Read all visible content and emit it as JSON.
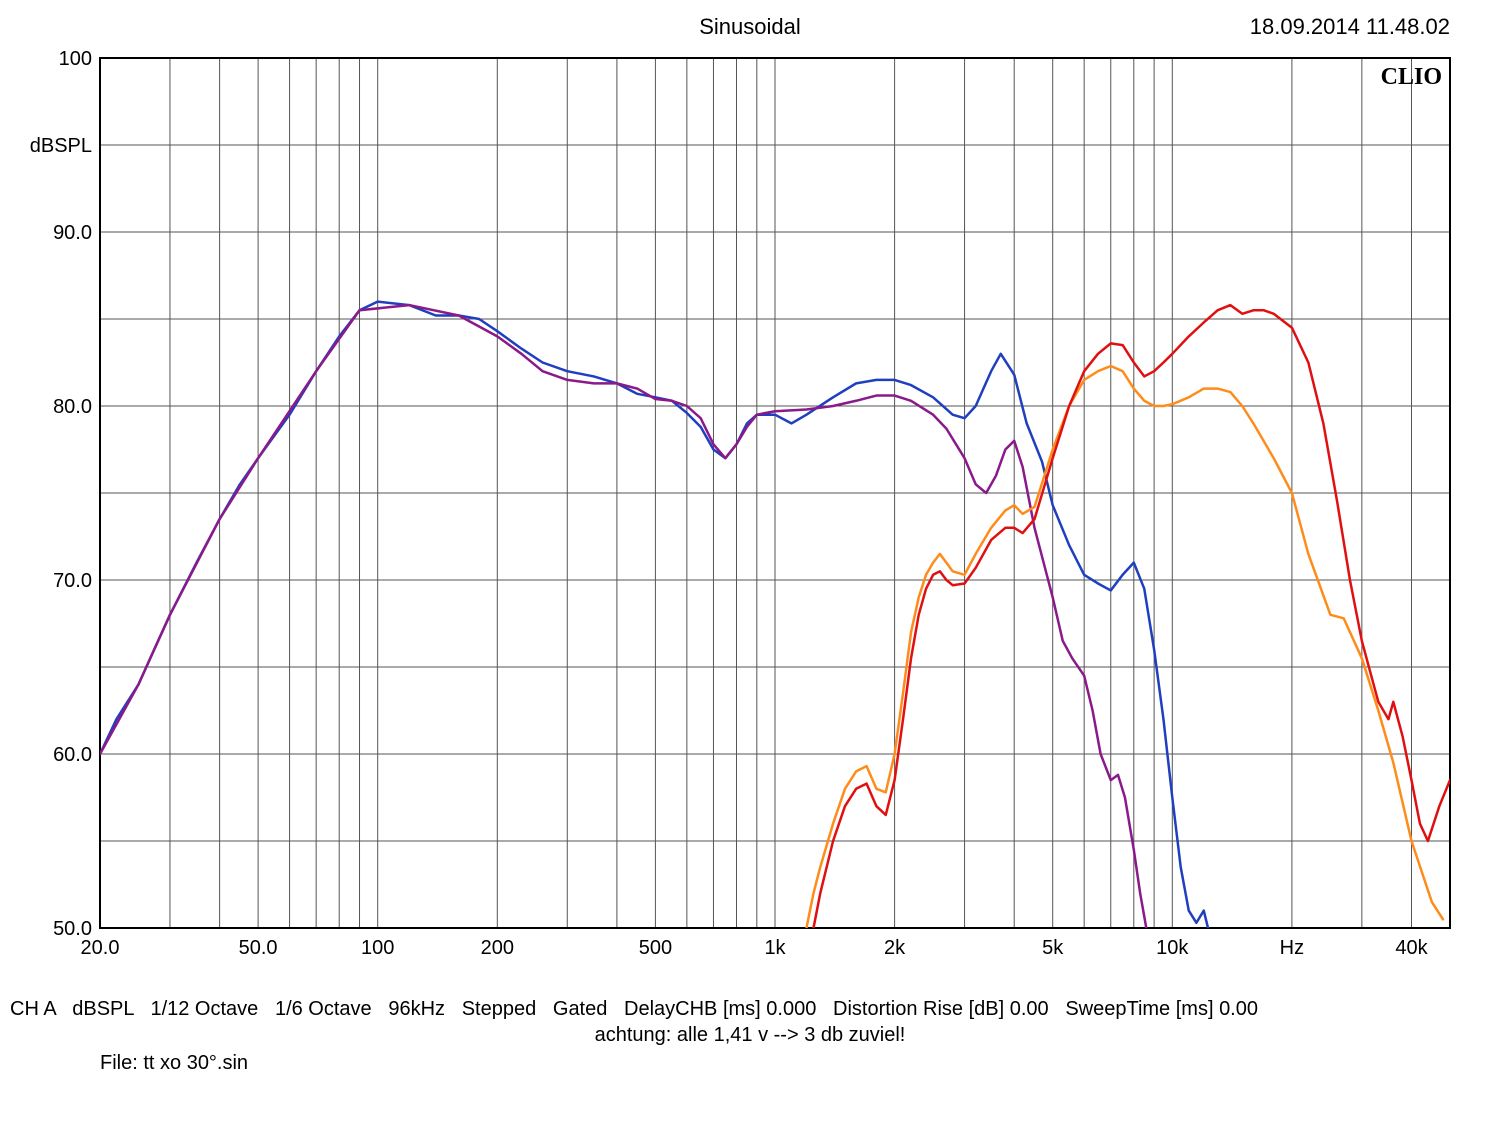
{
  "title": "Sinusoidal",
  "timestamp": "18.09.2014 11.48.02",
  "watermark": "CLIO",
  "footer_line1_parts": [
    "CH A",
    "dBSPL",
    "1/12 Octave",
    "1/6 Octave",
    "96kHz",
    "Stepped",
    "Gated",
    "DelayCHB [ms] 0.000",
    "Distortion Rise [dB] 0.00",
    "SweepTime [ms] 0.00"
  ],
  "footer_line2": "achtung: alle 1,41 v --> 3 db zuviel!",
  "footer_line3": "File: tt xo 30°.sin",
  "chart": {
    "type": "line",
    "background_color": "#ffffff",
    "grid_color": "#555555",
    "axis_color": "#000000",
    "line_width": 2.5,
    "font_family": "Arial",
    "tick_fontsize": 20,
    "axis_label_fontsize": 20,
    "watermark_fontsize": 24,
    "x": {
      "scale": "log",
      "min": 20,
      "max": 50000,
      "tick_values": [
        20,
        50,
        100,
        200,
        500,
        1000,
        2000,
        5000,
        10000,
        20000,
        40000
      ],
      "tick_labels": [
        "20.0",
        "50.0",
        "100",
        "200",
        "500",
        "1k",
        "2k",
        "5k",
        "10k",
        "Hz",
        "40k"
      ],
      "minor_grid_values": [
        20,
        30,
        40,
        50,
        60,
        70,
        80,
        90,
        100,
        200,
        300,
        400,
        500,
        600,
        700,
        800,
        900,
        1000,
        2000,
        3000,
        4000,
        5000,
        6000,
        7000,
        8000,
        9000,
        10000,
        20000,
        30000,
        40000,
        50000
      ]
    },
    "y": {
      "scale": "linear",
      "min": 50,
      "max": 100,
      "label": "dBSPL",
      "label_pos_value": 95,
      "tick_values": [
        50,
        55,
        60,
        65,
        70,
        75,
        80,
        85,
        90,
        95,
        100
      ],
      "tick_labels": [
        "50.0",
        "",
        "60.0",
        "",
        "70.0",
        "",
        "80.0",
        "",
        "90.0",
        "",
        "100"
      ]
    },
    "series": [
      {
        "name": "blue",
        "color": "#1f3fbf",
        "points": [
          [
            20,
            60.0
          ],
          [
            22,
            62.0
          ],
          [
            25,
            64.0
          ],
          [
            28,
            66.5
          ],
          [
            30,
            68.0
          ],
          [
            35,
            71.0
          ],
          [
            40,
            73.5
          ],
          [
            45,
            75.5
          ],
          [
            50,
            77.0
          ],
          [
            60,
            79.5
          ],
          [
            70,
            82.0
          ],
          [
            80,
            84.0
          ],
          [
            90,
            85.5
          ],
          [
            100,
            86.0
          ],
          [
            120,
            85.8
          ],
          [
            140,
            85.2
          ],
          [
            160,
            85.2
          ],
          [
            180,
            85.0
          ],
          [
            200,
            84.3
          ],
          [
            230,
            83.3
          ],
          [
            260,
            82.5
          ],
          [
            300,
            82.0
          ],
          [
            350,
            81.7
          ],
          [
            400,
            81.3
          ],
          [
            450,
            80.7
          ],
          [
            500,
            80.5
          ],
          [
            550,
            80.3
          ],
          [
            600,
            79.6
          ],
          [
            650,
            78.8
          ],
          [
            700,
            77.5
          ],
          [
            750,
            77.0
          ],
          [
            800,
            77.8
          ],
          [
            850,
            79.0
          ],
          [
            900,
            79.5
          ],
          [
            1000,
            79.5
          ],
          [
            1100,
            79.0
          ],
          [
            1200,
            79.5
          ],
          [
            1400,
            80.5
          ],
          [
            1600,
            81.3
          ],
          [
            1800,
            81.5
          ],
          [
            2000,
            81.5
          ],
          [
            2200,
            81.2
          ],
          [
            2500,
            80.5
          ],
          [
            2800,
            79.5
          ],
          [
            3000,
            79.3
          ],
          [
            3200,
            80.0
          ],
          [
            3500,
            82.0
          ],
          [
            3700,
            83.0
          ],
          [
            4000,
            81.8
          ],
          [
            4300,
            79.0
          ],
          [
            4700,
            76.8
          ],
          [
            5000,
            74.3
          ],
          [
            5500,
            72.0
          ],
          [
            6000,
            70.3
          ],
          [
            6500,
            69.8
          ],
          [
            7000,
            69.4
          ],
          [
            7500,
            70.3
          ],
          [
            8000,
            71.0
          ],
          [
            8500,
            69.5
          ],
          [
            9000,
            66.0
          ],
          [
            9500,
            62.0
          ],
          [
            10000,
            57.5
          ],
          [
            10500,
            53.5
          ],
          [
            11000,
            51.0
          ],
          [
            11500,
            50.3
          ],
          [
            12000,
            51.0
          ],
          [
            12300,
            50.0
          ]
        ]
      },
      {
        "name": "purple",
        "color": "#8a1a8a",
        "points": [
          [
            20,
            60.0
          ],
          [
            25,
            64.0
          ],
          [
            30,
            68.0
          ],
          [
            40,
            73.5
          ],
          [
            50,
            77.0
          ],
          [
            70,
            82.0
          ],
          [
            90,
            85.5
          ],
          [
            120,
            85.8
          ],
          [
            160,
            85.2
          ],
          [
            200,
            84.0
          ],
          [
            230,
            83.0
          ],
          [
            260,
            82.0
          ],
          [
            300,
            81.5
          ],
          [
            350,
            81.3
          ],
          [
            400,
            81.3
          ],
          [
            450,
            81.0
          ],
          [
            500,
            80.4
          ],
          [
            550,
            80.3
          ],
          [
            600,
            80.0
          ],
          [
            650,
            79.3
          ],
          [
            700,
            77.8
          ],
          [
            750,
            77.0
          ],
          [
            800,
            77.8
          ],
          [
            850,
            78.8
          ],
          [
            900,
            79.5
          ],
          [
            1000,
            79.7
          ],
          [
            1200,
            79.8
          ],
          [
            1400,
            80.0
          ],
          [
            1600,
            80.3
          ],
          [
            1800,
            80.6
          ],
          [
            2000,
            80.6
          ],
          [
            2200,
            80.3
          ],
          [
            2500,
            79.5
          ],
          [
            2700,
            78.7
          ],
          [
            3000,
            77.0
          ],
          [
            3200,
            75.5
          ],
          [
            3400,
            75.0
          ],
          [
            3600,
            76.0
          ],
          [
            3800,
            77.5
          ],
          [
            4000,
            78.0
          ],
          [
            4200,
            76.5
          ],
          [
            4500,
            73.0
          ],
          [
            5000,
            69.0
          ],
          [
            5300,
            66.5
          ],
          [
            5600,
            65.5
          ],
          [
            6000,
            64.5
          ],
          [
            6300,
            62.5
          ],
          [
            6600,
            60.0
          ],
          [
            7000,
            58.5
          ],
          [
            7300,
            58.8
          ],
          [
            7600,
            57.5
          ],
          [
            8000,
            54.5
          ],
          [
            8300,
            52.0
          ],
          [
            8600,
            50.0
          ]
        ]
      },
      {
        "name": "orange",
        "color": "#ff8c1a",
        "points": [
          [
            1200,
            50.0
          ],
          [
            1250,
            52.0
          ],
          [
            1300,
            53.5
          ],
          [
            1400,
            56.0
          ],
          [
            1500,
            58.0
          ],
          [
            1600,
            59.0
          ],
          [
            1700,
            59.3
          ],
          [
            1800,
            58.0
          ],
          [
            1900,
            57.8
          ],
          [
            2000,
            60.0
          ],
          [
            2100,
            63.5
          ],
          [
            2200,
            67.0
          ],
          [
            2300,
            69.0
          ],
          [
            2400,
            70.3
          ],
          [
            2500,
            71.0
          ],
          [
            2600,
            71.5
          ],
          [
            2700,
            71.0
          ],
          [
            2800,
            70.5
          ],
          [
            3000,
            70.3
          ],
          [
            3200,
            71.5
          ],
          [
            3500,
            73.0
          ],
          [
            3800,
            74.0
          ],
          [
            4000,
            74.3
          ],
          [
            4200,
            73.8
          ],
          [
            4500,
            74.2
          ],
          [
            5000,
            77.5
          ],
          [
            5500,
            80.0
          ],
          [
            6000,
            81.5
          ],
          [
            6500,
            82.0
          ],
          [
            7000,
            82.3
          ],
          [
            7500,
            82.0
          ],
          [
            8000,
            81.0
          ],
          [
            8500,
            80.3
          ],
          [
            9000,
            80.0
          ],
          [
            9500,
            80.0
          ],
          [
            10000,
            80.1
          ],
          [
            11000,
            80.5
          ],
          [
            12000,
            81.0
          ],
          [
            13000,
            81.0
          ],
          [
            14000,
            80.8
          ],
          [
            15000,
            80.0
          ],
          [
            16000,
            79.0
          ],
          [
            18000,
            77.0
          ],
          [
            20000,
            75.0
          ],
          [
            22000,
            71.5
          ],
          [
            25000,
            68.0
          ],
          [
            27000,
            67.8
          ],
          [
            30000,
            65.5
          ],
          [
            33000,
            62.5
          ],
          [
            36000,
            59.5
          ],
          [
            40000,
            55.0
          ],
          [
            45000,
            51.5
          ],
          [
            48000,
            50.5
          ]
        ]
      },
      {
        "name": "red",
        "color": "#e01010",
        "points": [
          [
            1250,
            50.0
          ],
          [
            1300,
            52.0
          ],
          [
            1400,
            55.0
          ],
          [
            1500,
            57.0
          ],
          [
            1600,
            58.0
          ],
          [
            1700,
            58.3
          ],
          [
            1800,
            57.0
          ],
          [
            1900,
            56.5
          ],
          [
            2000,
            58.5
          ],
          [
            2100,
            62.0
          ],
          [
            2200,
            65.5
          ],
          [
            2300,
            68.0
          ],
          [
            2400,
            69.5
          ],
          [
            2500,
            70.3
          ],
          [
            2600,
            70.5
          ],
          [
            2700,
            70.0
          ],
          [
            2800,
            69.7
          ],
          [
            3000,
            69.8
          ],
          [
            3200,
            70.7
          ],
          [
            3500,
            72.3
          ],
          [
            3800,
            73.0
          ],
          [
            4000,
            73.0
          ],
          [
            4200,
            72.7
          ],
          [
            4500,
            73.5
          ],
          [
            5000,
            77.0
          ],
          [
            5500,
            80.0
          ],
          [
            6000,
            82.0
          ],
          [
            6500,
            83.0
          ],
          [
            7000,
            83.6
          ],
          [
            7500,
            83.5
          ],
          [
            8000,
            82.5
          ],
          [
            8500,
            81.7
          ],
          [
            9000,
            82.0
          ],
          [
            9500,
            82.5
          ],
          [
            10000,
            83.0
          ],
          [
            11000,
            84.0
          ],
          [
            12000,
            84.8
          ],
          [
            13000,
            85.5
          ],
          [
            14000,
            85.8
          ],
          [
            15000,
            85.3
          ],
          [
            16000,
            85.5
          ],
          [
            17000,
            85.5
          ],
          [
            18000,
            85.3
          ],
          [
            20000,
            84.5
          ],
          [
            22000,
            82.5
          ],
          [
            24000,
            79.0
          ],
          [
            26000,
            74.5
          ],
          [
            28000,
            70.0
          ],
          [
            30000,
            66.5
          ],
          [
            33000,
            63.0
          ],
          [
            35000,
            62.0
          ],
          [
            36000,
            63.0
          ],
          [
            38000,
            61.0
          ],
          [
            40000,
            58.5
          ],
          [
            42000,
            56.0
          ],
          [
            44000,
            55.0
          ],
          [
            47000,
            57.0
          ],
          [
            50000,
            58.5
          ]
        ]
      }
    ]
  }
}
